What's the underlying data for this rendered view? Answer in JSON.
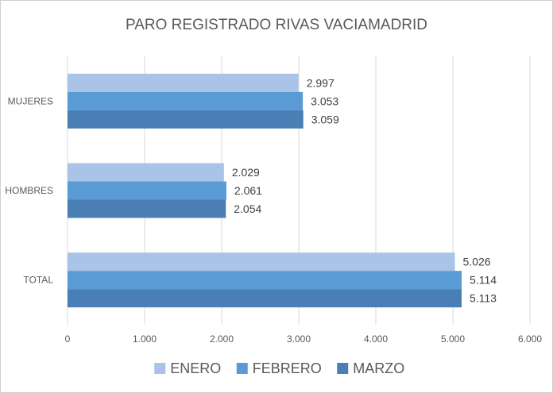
{
  "chart_data": {
    "type": "bar",
    "orientation": "horizontal",
    "title": "PARO REGISTRADO RIVAS VACIAMADRID",
    "xlabel": "",
    "ylabel": "",
    "categories": [
      "MUJERES",
      "HOMBRES",
      "TOTAL"
    ],
    "series": [
      {
        "name": "ENERO",
        "color": "#a9c4e6",
        "values": [
          2997,
          2029,
          5026
        ],
        "labels": [
          "2.997",
          "2.029",
          "5.026"
        ]
      },
      {
        "name": "FEBRERO",
        "color": "#5b9bd5",
        "values": [
          3053,
          2061,
          5114
        ],
        "labels": [
          "3.053",
          "2.061",
          "5.114"
        ]
      },
      {
        "name": "MARZO",
        "color": "#4a7fb5",
        "values": [
          3059,
          2054,
          5113
        ],
        "labels": [
          "3.059",
          "2.054",
          "5.113"
        ]
      }
    ],
    "xlim": [
      0,
      6000
    ],
    "xticks": [
      0,
      1000,
      2000,
      3000,
      4000,
      5000,
      6000
    ],
    "xtick_labels": [
      "0",
      "1.000",
      "2.000",
      "3.000",
      "4.000",
      "5.000",
      "6.000"
    ],
    "grid": true,
    "legend": "bottom"
  }
}
